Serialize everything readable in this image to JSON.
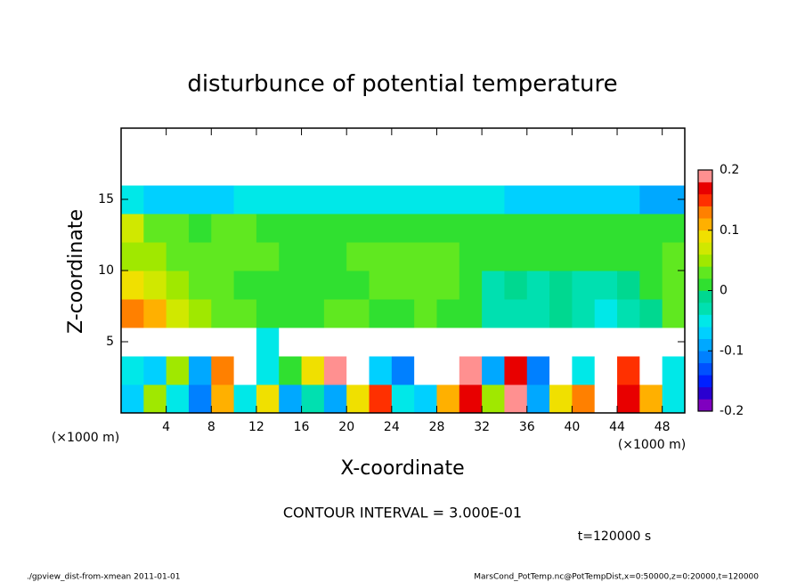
{
  "chart_data": {
    "type": "contour",
    "title": "disturbunce of potential temperature",
    "x_label": "X-coordinate",
    "y_label": "Z-coordinate",
    "x_unit": "(×1000 m)",
    "y_unit": "(×1000 m)",
    "contour_interval": "CONTOUR INTERVAL = 3.000E-01",
    "time_label": "t=120000 s",
    "footer_left": "./gpview_dist-from-xmean  2011-01-01",
    "footer_right": "MarsCond_PotTemp.nc@PotTempDist,x=0:50000,z=0:20000,t=120000",
    "xlim": [
      0,
      50
    ],
    "ylim": [
      0,
      20
    ],
    "xticks": [
      4,
      8,
      12,
      16,
      20,
      24,
      28,
      32,
      36,
      40,
      44,
      48
    ],
    "yticks": [
      5,
      10,
      15
    ],
    "x": [
      1,
      3,
      5,
      7,
      9,
      11,
      13,
      15,
      17,
      19,
      21,
      23,
      25,
      27,
      29,
      31,
      33,
      35,
      37,
      39,
      41,
      43,
      45,
      47,
      49
    ],
    "y": [
      1,
      3,
      5,
      7,
      9,
      11,
      13,
      15,
      17,
      19
    ],
    "z": [
      [
        -0.08,
        0.04,
        -0.06,
        -0.12,
        0.1,
        -0.06,
        0.08,
        -0.1,
        -0.04,
        -0.09,
        0.08,
        0.15,
        -0.05,
        -0.08,
        0.1,
        0.16,
        0.04,
        0.18,
        -0.1,
        0.08,
        0.12,
        -0.3,
        0.16,
        0.1,
        -0.06
      ],
      [
        -0.06,
        -0.08,
        0.05,
        -0.1,
        0.12,
        0.3,
        -0.06,
        0.0,
        0.08,
        0.18,
        0.3,
        -0.08,
        -0.12,
        0.22,
        0.3,
        0.18,
        -0.1,
        0.16,
        -0.12,
        0.3,
        -0.06,
        -0.3,
        0.15,
        -0.3,
        -0.05
      ],
      [
        -0.25,
        -0.25,
        -0.3,
        -0.25,
        0.3,
        0.25,
        -0.05,
        0.25,
        0.3,
        -0.3,
        -0.25,
        -0.25,
        -0.25,
        -0.25,
        -0.3,
        -0.3,
        -0.25,
        -0.3,
        -0.25,
        -0.25,
        -0.25,
        -0.3,
        -0.25,
        -0.25,
        -0.25
      ],
      [
        0.12,
        0.1,
        0.06,
        0.04,
        0.02,
        0.02,
        0.01,
        0.01,
        0.01,
        0.02,
        0.02,
        0.01,
        0.01,
        0.02,
        0.01,
        0.0,
        -0.03,
        -0.04,
        -0.03,
        -0.02,
        -0.04,
        -0.05,
        -0.03,
        -0.01,
        0.02
      ],
      [
        0.08,
        0.07,
        0.05,
        0.03,
        0.02,
        0.01,
        0.01,
        0.01,
        0.01,
        0.01,
        0.01,
        0.02,
        0.02,
        0.03,
        0.02,
        0.01,
        -0.03,
        -0.01,
        -0.04,
        -0.01,
        -0.03,
        -0.04,
        -0.01,
        0.01,
        0.03
      ],
      [
        0.05,
        0.04,
        0.03,
        0.02,
        0.02,
        0.02,
        0.02,
        0.01,
        0.01,
        0.01,
        0.02,
        0.02,
        0.02,
        0.02,
        0.02,
        0.01,
        0.01,
        0.01,
        0.01,
        0.01,
        0.0,
        0.01,
        0.01,
        0.0,
        0.02
      ],
      [
        0.06,
        0.03,
        0.02,
        0.01,
        0.02,
        0.02,
        0.01,
        0.01,
        0.01,
        0.0,
        0.01,
        0.01,
        0.01,
        0.01,
        0.01,
        0.01,
        0.01,
        0.01,
        0.01,
        0.01,
        0.01,
        0.01,
        0.01,
        0.0,
        0.0
      ],
      [
        -0.06,
        -0.07,
        -0.08,
        -0.08,
        -0.07,
        -0.06,
        -0.05,
        -0.05,
        -0.05,
        -0.05,
        -0.05,
        -0.05,
        -0.05,
        -0.05,
        -0.05,
        -0.06,
        -0.06,
        -0.07,
        -0.07,
        -0.07,
        -0.07,
        -0.08,
        -0.08,
        -0.1,
        -0.1
      ],
      [
        0.3,
        0.3,
        0.25,
        0.25,
        0.3,
        0.3,
        0.3,
        0.25,
        0.3,
        0.3,
        0.3,
        0.3,
        0.3,
        0.3,
        0.25,
        0.3,
        0.3,
        0.3,
        0.3,
        0.3,
        0.3,
        0.3,
        0.3,
        0.3,
        0.3
      ],
      [
        0.3,
        0.3,
        0.3,
        0.3,
        0.3,
        0.3,
        0.3,
        0.3,
        0.3,
        0.3,
        0.3,
        0.3,
        0.3,
        0.3,
        0.3,
        0.3,
        0.3,
        0.3,
        0.3,
        0.3,
        0.3,
        0.3,
        0.3,
        0.3,
        0.3
      ]
    ],
    "colorbar": {
      "levels": [
        -0.2,
        -0.18,
        -0.16,
        -0.14,
        -0.12,
        -0.1,
        -0.08,
        -0.06,
        -0.04,
        -0.02,
        0,
        0.02,
        0.04,
        0.06,
        0.08,
        0.1,
        0.12,
        0.14,
        0.16,
        0.18,
        0.2
      ],
      "colors": [
        "#7f00bf",
        "#2a00d0",
        "#0020ff",
        "#0050ff",
        "#0080ff",
        "#00a8ff",
        "#00d0ff",
        "#00e8e8",
        "#00e0b0",
        "#00d890",
        "#30e030",
        "#60e820",
        "#a0e800",
        "#d0e800",
        "#f0e000",
        "#ffb000",
        "#ff8000",
        "#ff3000",
        "#e80000",
        "#ff9090"
      ],
      "ticks": [
        -0.2,
        -0.1,
        0,
        0.1,
        0.2
      ]
    }
  }
}
